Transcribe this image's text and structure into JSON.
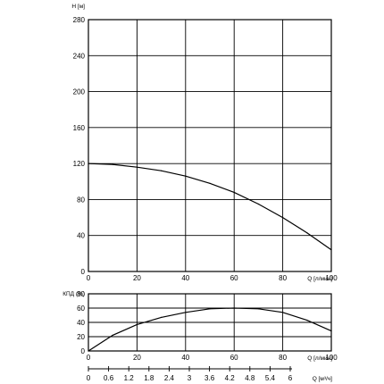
{
  "chart_data": [
    {
      "type": "line",
      "ylabel": "H [м]",
      "xlabel": "Q [л/мин]",
      "xlim": [
        0,
        100
      ],
      "ylim": [
        0,
        280
      ],
      "x_ticks": [
        0,
        20,
        40,
        60,
        80,
        100
      ],
      "y_ticks": [
        0,
        40,
        80,
        120,
        160,
        200,
        240,
        280
      ],
      "grid": true,
      "series": [
        {
          "x": [
            0,
            10,
            20,
            30,
            40,
            50,
            60,
            70,
            80,
            90,
            100
          ],
          "y": [
            120,
            119,
            116,
            112,
            106,
            98,
            88,
            75,
            60,
            43,
            24
          ]
        }
      ]
    },
    {
      "type": "line",
      "ylabel": "КПД (%)",
      "xlabel": "Q [л/мин]",
      "xlabel2": "Q [м³/ч]",
      "xlim": [
        0,
        100
      ],
      "ylim": [
        0,
        80
      ],
      "x_ticks": [
        0,
        20,
        40,
        60,
        80,
        100
      ],
      "x2_ticks": [
        "0",
        "0.6",
        "1.2",
        "1.8",
        "2.4",
        "3",
        "3.6",
        "4.2",
        "4.8",
        "5.4",
        "6"
      ],
      "y_ticks": [
        0,
        20,
        40,
        60,
        80
      ],
      "grid": true,
      "series": [
        {
          "x": [
            0,
            10,
            20,
            30,
            40,
            50,
            60,
            70,
            80,
            90,
            100
          ],
          "y": [
            0,
            22,
            37,
            47,
            54,
            59,
            60,
            59,
            54,
            43,
            28
          ]
        }
      ]
    }
  ]
}
